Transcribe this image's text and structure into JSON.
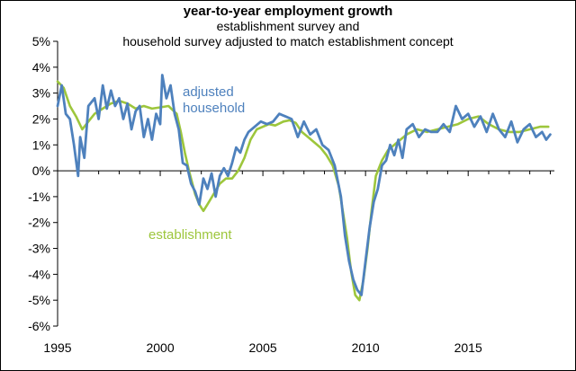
{
  "chart_data": {
    "type": "line",
    "title": "year-to-year employment growth",
    "subtitle_lines": [
      "establishment survey and",
      "household survey adjusted to match establishment concept"
    ],
    "xlabel": "",
    "ylabel": "",
    "xlim": [
      1995,
      2019.2
    ],
    "ylim": [
      -6,
      5
    ],
    "x_ticks": [
      1995,
      2000,
      2005,
      2010,
      2015
    ],
    "x_tick_labels": [
      "1995",
      "2000",
      "2005",
      "2010",
      "2015"
    ],
    "y_ticks": [
      5,
      4,
      3,
      2,
      1,
      0,
      -1,
      -2,
      -3,
      -4,
      -5,
      -6
    ],
    "y_tick_labels": [
      "5%",
      "4%",
      "3%",
      "2%",
      "1%",
      "0%",
      "-1%",
      "-2%",
      "-3%",
      "-4%",
      "-5%",
      "-6%"
    ],
    "grid": false,
    "series": [
      {
        "name": "establishment",
        "label": "establishment",
        "color": "#9DC63C",
        "x": [
          1995.0,
          1995.3,
          1995.6,
          1995.9,
          1996.2,
          1996.5,
          1996.8,
          1997.2,
          1997.6,
          1998.0,
          1998.4,
          1998.8,
          1999.2,
          1999.6,
          2000.0,
          2000.4,
          2000.8,
          2001.0,
          2001.2,
          2001.4,
          2001.7,
          2001.9,
          2002.1,
          2002.3,
          2002.6,
          2002.9,
          2003.2,
          2003.5,
          2003.8,
          2004.1,
          2004.4,
          2004.7,
          2005.0,
          2005.3,
          2005.6,
          2006.0,
          2006.3,
          2006.6,
          2006.9,
          2007.2,
          2007.5,
          2007.8,
          2008.1,
          2008.4,
          2008.7,
          2008.9,
          2009.1,
          2009.3,
          2009.5,
          2009.7,
          2009.9,
          2010.1,
          2010.3,
          2010.5,
          2010.8,
          2011.1,
          2011.4,
          2011.7,
          2012.0,
          2012.5,
          2013.0,
          2013.5,
          2014.0,
          2014.5,
          2015.0,
          2015.5,
          2016.0,
          2016.5,
          2017.0,
          2017.5,
          2018.0,
          2018.5,
          2018.9
        ],
        "values": [
          3.45,
          3.2,
          2.5,
          2.1,
          1.6,
          1.9,
          2.2,
          2.4,
          2.6,
          2.7,
          2.6,
          2.4,
          2.5,
          2.4,
          2.45,
          2.5,
          2.2,
          1.5,
          0.7,
          0.0,
          -0.9,
          -1.3,
          -1.55,
          -1.3,
          -0.9,
          -0.5,
          -0.3,
          -0.3,
          0.0,
          0.5,
          1.2,
          1.6,
          1.7,
          1.8,
          1.75,
          1.9,
          1.95,
          1.85,
          1.5,
          1.3,
          1.1,
          0.9,
          0.6,
          0.2,
          -0.6,
          -1.6,
          -2.6,
          -3.9,
          -4.8,
          -5.0,
          -4.2,
          -3.0,
          -1.5,
          -0.2,
          0.4,
          0.8,
          1.0,
          1.2,
          1.4,
          1.6,
          1.5,
          1.6,
          1.7,
          1.8,
          2.0,
          2.1,
          1.8,
          1.6,
          1.5,
          1.5,
          1.6,
          1.7,
          1.7
        ]
      },
      {
        "name": "adjusted household",
        "label": "adjusted\nhousehold",
        "color": "#4E81BD",
        "x": [
          1995.0,
          1995.2,
          1995.4,
          1995.6,
          1995.8,
          1996.0,
          1996.1,
          1996.3,
          1996.5,
          1996.8,
          1997.0,
          1997.2,
          1997.4,
          1997.6,
          1997.8,
          1998.0,
          1998.2,
          1998.4,
          1998.6,
          1998.8,
          1999.0,
          1999.2,
          1999.4,
          1999.6,
          1999.8,
          2000.0,
          2000.1,
          2000.3,
          2000.5,
          2000.7,
          2000.9,
          2001.1,
          2001.3,
          2001.5,
          2001.7,
          2001.9,
          2002.1,
          2002.3,
          2002.5,
          2002.7,
          2002.9,
          2003.1,
          2003.3,
          2003.5,
          2003.7,
          2003.9,
          2004.1,
          2004.3,
          2004.6,
          2004.9,
          2005.2,
          2005.5,
          2005.8,
          2006.1,
          2006.4,
          2006.7,
          2007.0,
          2007.3,
          2007.6,
          2007.9,
          2008.2,
          2008.5,
          2008.8,
          2009.0,
          2009.2,
          2009.4,
          2009.6,
          2009.8,
          2010.0,
          2010.2,
          2010.4,
          2010.6,
          2010.8,
          2011.0,
          2011.2,
          2011.4,
          2011.6,
          2011.8,
          2012.0,
          2012.3,
          2012.6,
          2012.9,
          2013.2,
          2013.5,
          2013.8,
          2014.1,
          2014.4,
          2014.7,
          2015.0,
          2015.3,
          2015.6,
          2015.9,
          2016.2,
          2016.5,
          2016.8,
          2017.1,
          2017.4,
          2017.7,
          2018.0,
          2018.3,
          2018.6,
          2018.8,
          2019.0
        ],
        "values": [
          2.5,
          3.3,
          2.2,
          2.0,
          1.0,
          -0.2,
          1.3,
          0.5,
          2.5,
          2.8,
          2.0,
          3.3,
          2.4,
          3.1,
          2.5,
          2.8,
          2.0,
          2.6,
          1.6,
          2.3,
          2.5,
          1.3,
          2.0,
          1.2,
          2.2,
          1.8,
          3.7,
          2.8,
          3.3,
          2.2,
          1.6,
          0.3,
          0.2,
          -0.5,
          -0.8,
          -1.3,
          -0.3,
          -0.7,
          -0.1,
          -1.0,
          -0.2,
          0.1,
          -0.2,
          0.3,
          0.9,
          0.7,
          1.2,
          1.5,
          1.7,
          1.9,
          1.8,
          1.9,
          2.2,
          2.1,
          2.0,
          1.3,
          1.9,
          1.4,
          1.6,
          1.0,
          0.8,
          0.2,
          -1.0,
          -2.5,
          -3.5,
          -4.2,
          -4.6,
          -4.8,
          -3.5,
          -2.2,
          -1.2,
          -0.7,
          0.2,
          0.4,
          1.0,
          0.6,
          1.2,
          0.5,
          1.6,
          1.8,
          1.3,
          1.6,
          1.5,
          1.5,
          1.8,
          1.5,
          2.5,
          2.0,
          2.2,
          1.7,
          2.1,
          1.5,
          2.2,
          1.6,
          1.3,
          1.9,
          1.1,
          1.6,
          1.8,
          1.3,
          1.5,
          1.2,
          1.4
        ]
      }
    ]
  }
}
